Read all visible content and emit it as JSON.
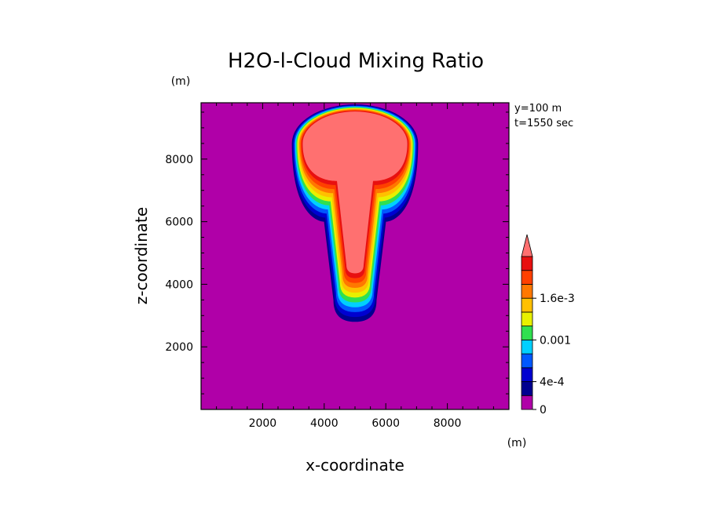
{
  "chart_data": {
    "type": "heatmap",
    "title": "H2O-l-Cloud Mixing Ratio",
    "xlabel": "x-coordinate",
    "ylabel": "z-coordinate",
    "x_unit": "(m)",
    "y_unit": "(m)",
    "annotations": [
      "y=100 m",
      "t=1550 sec"
    ],
    "xlim": [
      0,
      10000
    ],
    "ylim": [
      0,
      9800
    ],
    "xticks": [
      2000,
      4000,
      6000,
      8000
    ],
    "yticks": [
      2000,
      4000,
      6000,
      8000
    ],
    "xtick_labels": [
      "2000",
      "4000",
      "6000",
      "8000"
    ],
    "ytick_labels": [
      "2000",
      "4000",
      "6000",
      "8000"
    ],
    "colorbar": {
      "levels": [
        0,
        0.0002,
        0.0004,
        0.0006,
        0.0008,
        0.001,
        0.0012,
        0.0014,
        0.0016,
        0.0018,
        0.002
      ],
      "tick_values": [
        0,
        0.0004,
        0.001,
        0.0016
      ],
      "tick_labels": [
        "0",
        "4e-4",
        "0.001",
        "1.6e-3"
      ],
      "colors": [
        "#b000a8",
        "#000090",
        "#0000d0",
        "#0058ff",
        "#00d0ff",
        "#30e050",
        "#e8f000",
        "#ffc000",
        "#ff7800",
        "#ff4000",
        "#e81010",
        "#ff7070"
      ],
      "extend": "max"
    },
    "background_color": "#b000a8",
    "cloud_core_color": "#ff7070"
  }
}
